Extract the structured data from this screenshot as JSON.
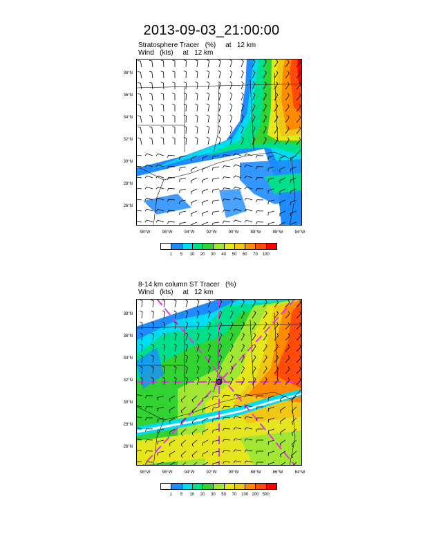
{
  "title": "2013-09-03_21:00:00",
  "panels": [
    {
      "line1": "Stratosphere Tracer   (%)     at   12 km",
      "line2": "Wind   (kts)     at   12 km",
      "lat_labels": [
        "38°N",
        "36°N",
        "34°N",
        "32°N",
        "30°N",
        "28°N",
        "26°N"
      ],
      "lon_labels": [
        "98°W",
        "96°W",
        "94°W",
        "92°W",
        "90°W",
        "88°W",
        "86°W",
        "84°W"
      ],
      "legend": {
        "ticks": [
          "1",
          "5",
          "10",
          "20",
          "30",
          "40",
          "50",
          "60",
          "70",
          "100"
        ],
        "colors": [
          "#ffffff",
          "#1e8cff",
          "#00dcf0",
          "#00e08c",
          "#32d232",
          "#a0e632",
          "#e6e61e",
          "#f0c814",
          "#ff8c00",
          "#ff4b0a",
          "#ff0000"
        ]
      }
    },
    {
      "line1": "8-14 km column ST Tracer   (%)",
      "line2": "Wind   (kts)     at   12 km",
      "lat_labels": [
        "38°N",
        "36°N",
        "34°N",
        "32°N",
        "30°N",
        "28°N",
        "26°N"
      ],
      "lon_labels": [
        "98°W",
        "96°W",
        "94°W",
        "92°W",
        "90°W",
        "88°W",
        "86°W",
        "84°W"
      ],
      "legend": {
        "ticks": [
          "1",
          "5",
          "10",
          "20",
          "30",
          "50",
          "70",
          "100",
          "200",
          "500"
        ],
        "colors": [
          "#ffffff",
          "#1e8cff",
          "#00dcf0",
          "#00e08c",
          "#32d232",
          "#a0e632",
          "#e6e61e",
          "#f0c814",
          "#ff8c00",
          "#ff4b0a",
          "#ff0000"
        ]
      }
    }
  ]
}
